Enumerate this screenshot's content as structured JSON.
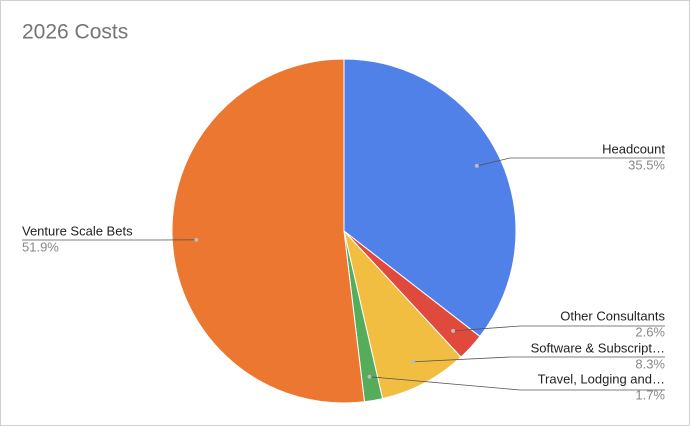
{
  "chart_data": {
    "type": "pie",
    "title": "2026 Costs",
    "categories": [
      "Headcount",
      "Other Consultants",
      "Software & Subscript…",
      "Travel, Lodging and…",
      "Venture Scale Bets"
    ],
    "values": [
      35.5,
      2.6,
      8.3,
      1.7,
      51.9
    ],
    "value_labels": [
      "35.5%",
      "2.6%",
      "8.3%",
      "1.7%",
      "51.9%"
    ],
    "colors": [
      "#4f81e9",
      "#e04a3d",
      "#f2be42",
      "#55ac5b",
      "#ec7730"
    ]
  }
}
